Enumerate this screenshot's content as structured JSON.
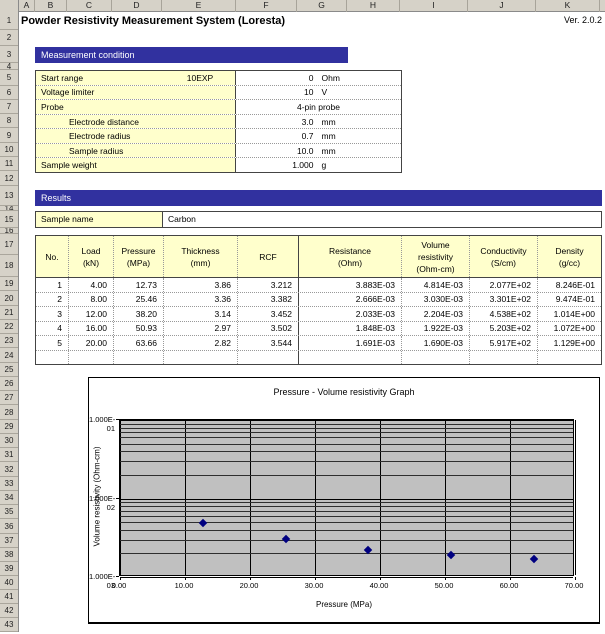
{
  "window": {
    "title": "Powder Resistivity Measurement System (Loresta)",
    "version": "Ver.  2.0.2"
  },
  "spreadsheet": {
    "column_letters": [
      "A",
      "B",
      "C",
      "D",
      "E",
      "F",
      "G",
      "H",
      "I",
      "J",
      "K"
    ],
    "visible_rows": 43
  },
  "sections": {
    "measurement_condition": "Measurement condition",
    "results": "Results"
  },
  "condition_table": {
    "rows": [
      {
        "label": "Start range",
        "label_note": "10EXP",
        "value": "0",
        "unit": "Ohm",
        "indent": false,
        "center": false
      },
      {
        "label": "Voltage limiter",
        "label_note": "",
        "value": "10",
        "unit": "V",
        "indent": false,
        "center": false
      },
      {
        "label": "Probe",
        "label_note": "",
        "value": "4-pin probe",
        "unit": "",
        "indent": false,
        "center": true
      },
      {
        "label": "Electrode distance",
        "label_note": "",
        "value": "3.0",
        "unit": "mm",
        "indent": true,
        "center": false
      },
      {
        "label": "Electrode radius",
        "label_note": "",
        "value": "0.7",
        "unit": "mm",
        "indent": true,
        "center": false
      },
      {
        "label": "Sample radius",
        "label_note": "",
        "value": "10.0",
        "unit": "mm",
        "indent": true,
        "center": false
      },
      {
        "label": "Sample weight",
        "label_note": "",
        "value": "1.000",
        "unit": "g",
        "indent": false,
        "center": false
      }
    ]
  },
  "results": {
    "sample_name_label": "Sample name",
    "sample_name": "Carbon"
  },
  "data_table": {
    "headers": [
      [
        "No."
      ],
      [
        "Load",
        "(kN)"
      ],
      [
        "Pressure",
        "(MPa)"
      ],
      [
        "Thickness",
        "(mm)"
      ],
      [
        "RCF"
      ],
      [
        "Resistance",
        "(Ohm)"
      ],
      [
        "Volume",
        "resistivity",
        "(Ohm-cm)"
      ],
      [
        "Conductivity",
        "(S/cm)"
      ],
      [
        "Density",
        "(g/cc)"
      ]
    ],
    "rows": [
      [
        "1",
        "4.00",
        "12.73",
        "3.86",
        "3.212",
        "3.883E-03",
        "4.814E-03",
        "2.077E+02",
        "8.246E-01"
      ],
      [
        "2",
        "8.00",
        "25.46",
        "3.36",
        "3.382",
        "2.666E-03",
        "3.030E-03",
        "3.301E+02",
        "9.474E-01"
      ],
      [
        "3",
        "12.00",
        "38.20",
        "3.14",
        "3.452",
        "2.033E-03",
        "2.204E-03",
        "4.538E+02",
        "1.014E+00"
      ],
      [
        "4",
        "16.00",
        "50.93",
        "2.97",
        "3.502",
        "1.848E-03",
        "1.922E-03",
        "5.203E+02",
        "1.072E+00"
      ],
      [
        "5",
        "20.00",
        "63.66",
        "2.82",
        "3.544",
        "1.691E-03",
        "1.690E-03",
        "5.917E+02",
        "1.129E+00"
      ]
    ]
  },
  "chart_data": {
    "type": "scatter",
    "title": "Pressure - Volume resistivity Graph",
    "xlabel": "Pressure (MPa)",
    "ylabel": "Volume resistivity (Ohm-cm)",
    "series_name": "Volume resistivity",
    "x": [
      12.73,
      25.46,
      38.2,
      50.93,
      63.66
    ],
    "y": [
      0.004814,
      0.00303,
      0.002204,
      0.001922,
      0.00169
    ],
    "xlim": [
      0,
      70
    ],
    "xticks": [
      0,
      10,
      20,
      30,
      40,
      50,
      60,
      70
    ],
    "xtick_labels": [
      "0.00",
      "10.00",
      "20.00",
      "30.00",
      "40.00",
      "50.00",
      "60.00",
      "70.00"
    ],
    "yscale": "log",
    "ylim": [
      0.001,
      0.1
    ],
    "ytick_labels": [
      "1.000E-01",
      "1.000E-02",
      "1.000E-03"
    ],
    "ytick_values": [
      0.1,
      0.01,
      0.001
    ],
    "grid": true,
    "legend": false,
    "marker": "diamond",
    "marker_color": "#000080",
    "plot_bg": "#c0c0c0"
  },
  "colors": {
    "section_header_bg": "#31319f",
    "section_header_text": "#ffffff",
    "label_cell_bg": "#ffffcc",
    "chart_plot_bg": "#c0c0c0",
    "marker": "#000080"
  }
}
